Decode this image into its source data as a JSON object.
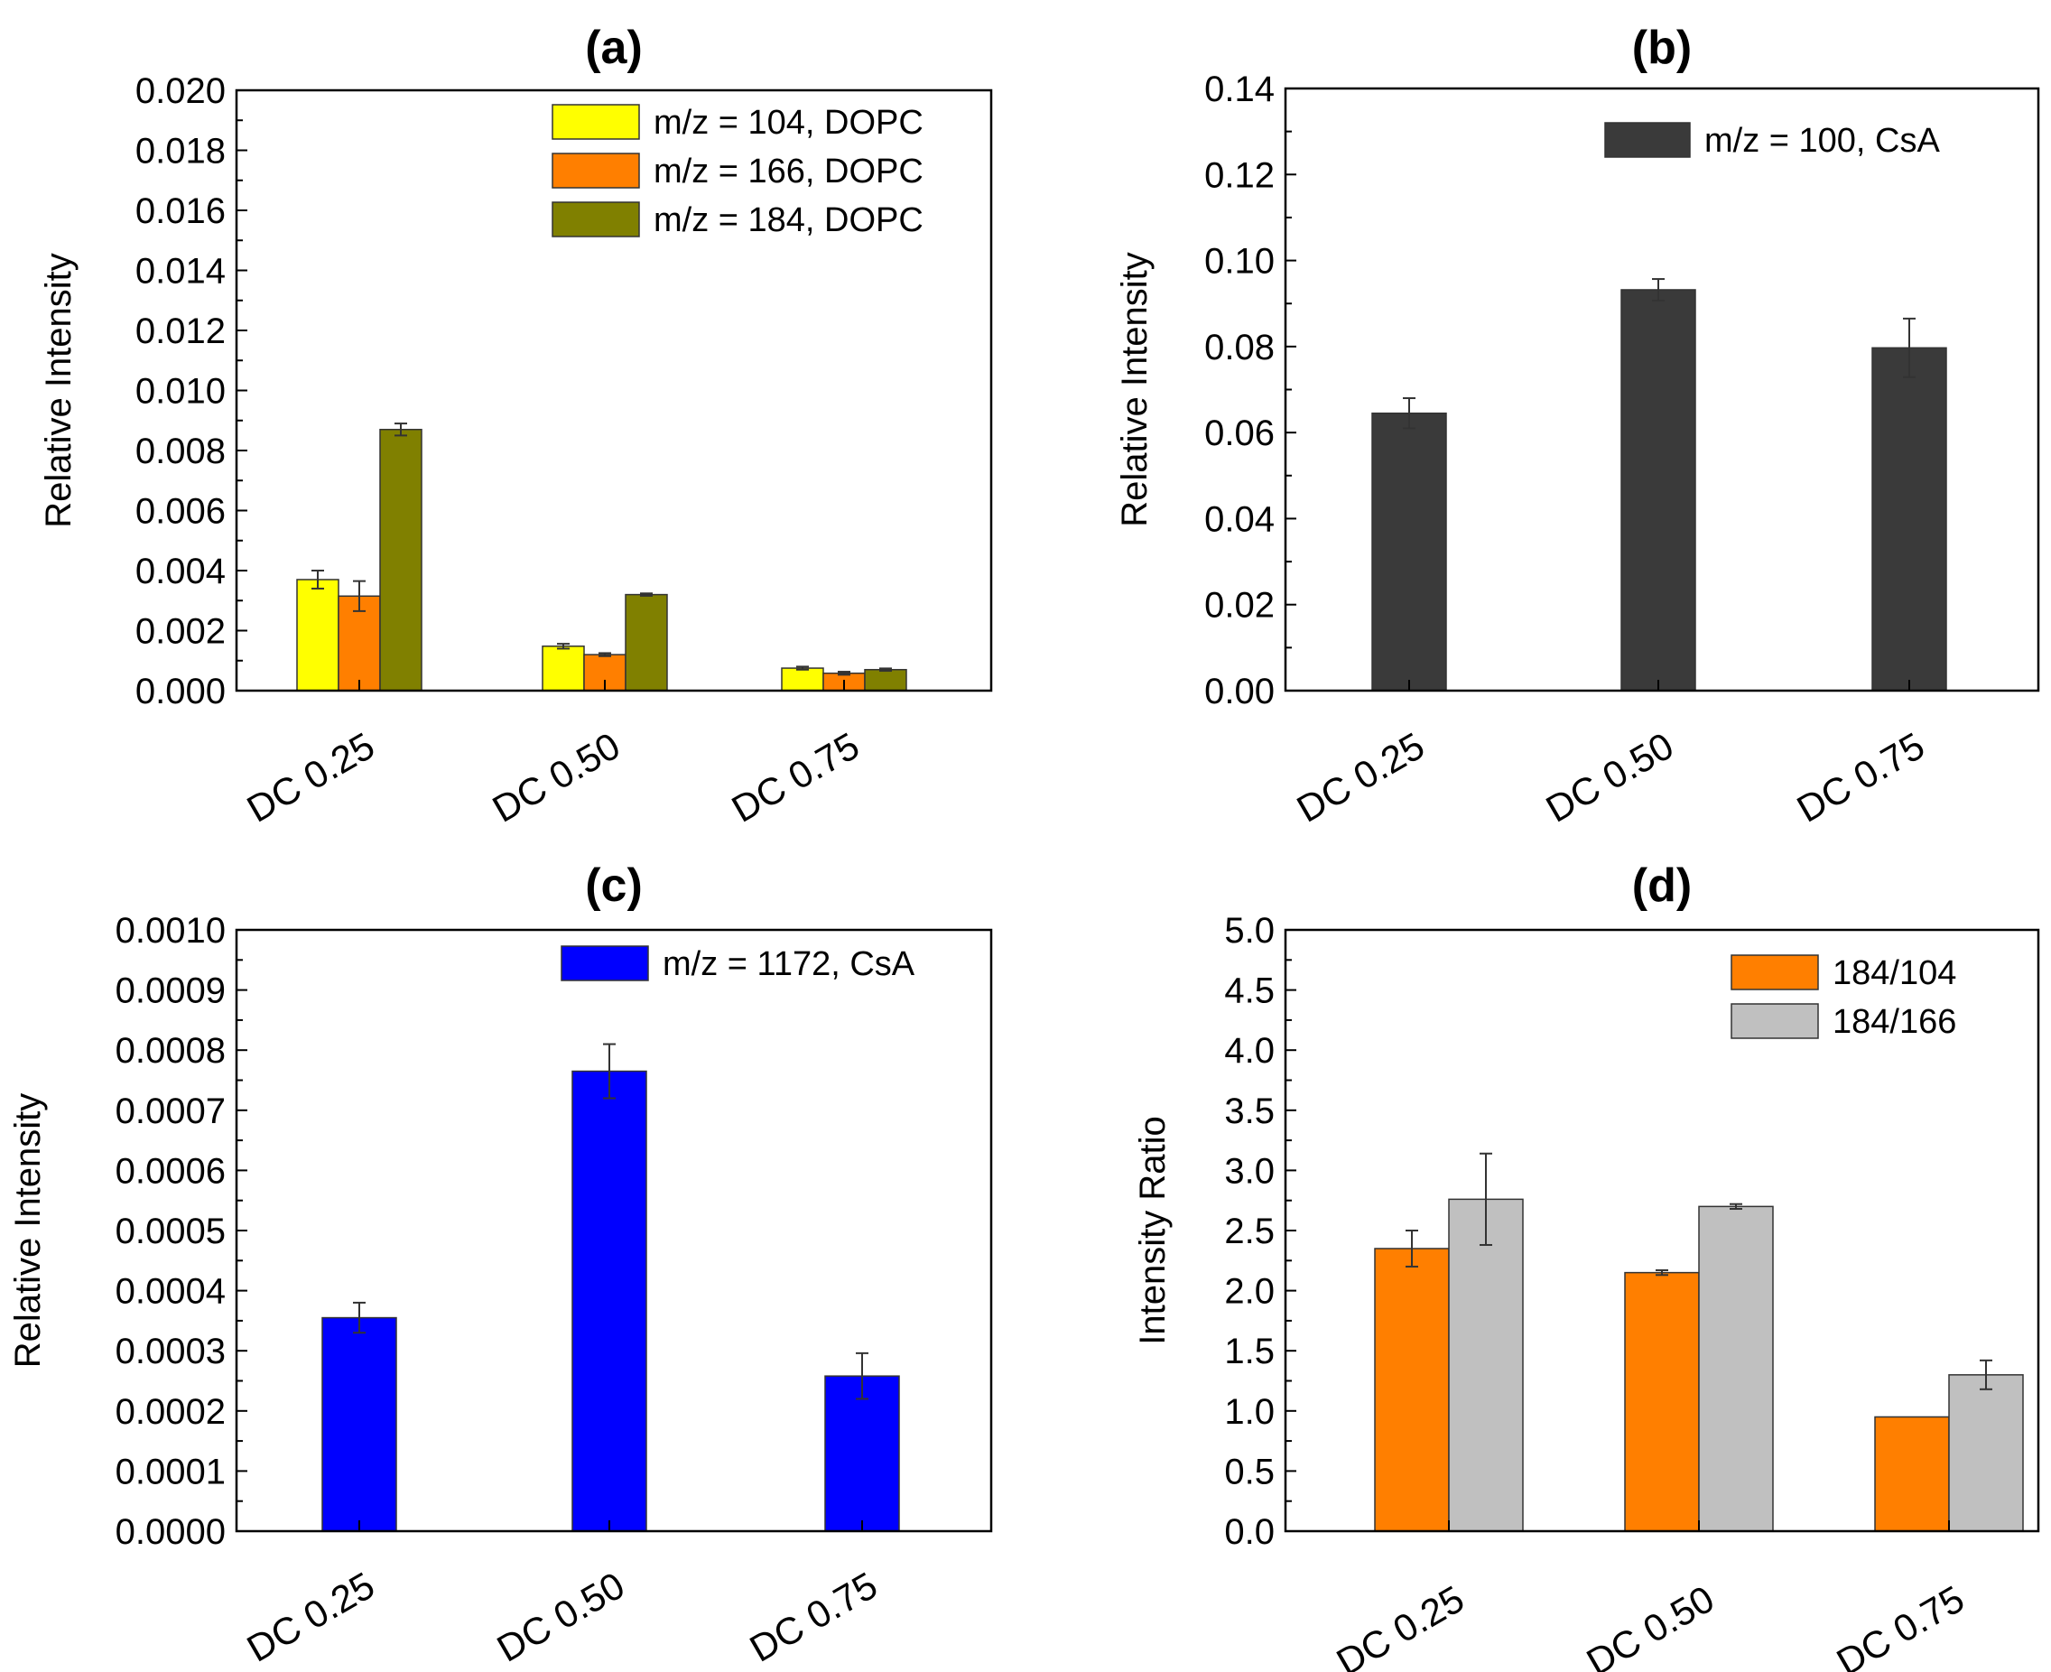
{
  "chart_data": [
    {
      "type": "bar",
      "title": "(a)",
      "xlabel": "",
      "ylabel": "Relative Intensity",
      "ylim": [
        0,
        0.02
      ],
      "yticks": [
        "0.000",
        "0.002",
        "0.004",
        "0.006",
        "0.008",
        "0.010",
        "0.012",
        "0.014",
        "0.016",
        "0.018",
        "0.020"
      ],
      "categories": [
        "DC 0.25",
        "DC 0.50",
        "DC 0.75"
      ],
      "legend_position": "top-right",
      "series": [
        {
          "name": "m/z = 104, DOPC",
          "color": "#ffff00",
          "values": [
            0.0037,
            0.00148,
            0.00075
          ],
          "errors": [
            0.0003,
            8e-05,
            5e-05
          ]
        },
        {
          "name": "m/z = 166, DOPC",
          "color": "#ff7f00",
          "values": [
            0.00315,
            0.0012,
            0.00058
          ],
          "errors": [
            0.0005,
            5e-05,
            5e-05
          ]
        },
        {
          "name": "m/z = 184, DOPC",
          "color": "#808000",
          "values": [
            0.0087,
            0.0032,
            0.0007
          ],
          "errors": [
            0.0002,
            4e-05,
            4e-05
          ]
        }
      ]
    },
    {
      "type": "bar",
      "title": "(b)",
      "xlabel": "",
      "ylabel": "Relative Intensity",
      "ylim": [
        0,
        0.14
      ],
      "yticks": [
        "0.00",
        "0.02",
        "0.04",
        "0.06",
        "0.08",
        "0.10",
        "0.12",
        "0.14"
      ],
      "categories": [
        "DC 0.25",
        "DC 0.50",
        "DC 0.75"
      ],
      "legend_position": "top-right",
      "series": [
        {
          "name": "m/z = 100, CsA",
          "color": "#3a3a3a",
          "values": [
            0.0645,
            0.0932,
            0.0797
          ],
          "errors": [
            0.0035,
            0.0025,
            0.0068
          ]
        }
      ]
    },
    {
      "type": "bar",
      "title": "(c)",
      "xlabel": "",
      "ylabel": "Relative Intensity",
      "ylim": [
        0,
        0.001
      ],
      "yticks": [
        "0.0000",
        "0.0001",
        "0.0002",
        "0.0003",
        "0.0004",
        "0.0005",
        "0.0006",
        "0.0007",
        "0.0008",
        "0.0009",
        "0.0010"
      ],
      "categories": [
        "DC 0.25",
        "DC 0.50",
        "DC 0.75"
      ],
      "legend_position": "top-right",
      "series": [
        {
          "name": "m/z = 1172, CsA",
          "color": "#0000ff",
          "values": [
            0.000355,
            0.000765,
            0.000258
          ],
          "errors": [
            2.5e-05,
            4.5e-05,
            3.8e-05
          ]
        }
      ]
    },
    {
      "type": "bar",
      "title": "(d)",
      "xlabel": "",
      "ylabel": "Intensity Ratio",
      "ylim": [
        0,
        5.0
      ],
      "yticks": [
        "0.0",
        "0.5",
        "1.0",
        "1.5",
        "2.0",
        "2.5",
        "3.0",
        "3.5",
        "4.0",
        "4.5",
        "5.0"
      ],
      "categories": [
        "DC 0.25",
        "DC 0.50",
        "DC 0.75"
      ],
      "legend_position": "top-right",
      "series": [
        {
          "name": "184/104",
          "color": "#ff7f00",
          "values": [
            2.35,
            2.15,
            0.95
          ],
          "errors": [
            0.15,
            0.02,
            0.0
          ]
        },
        {
          "name": "184/166",
          "color": "#c0c0c0",
          "values": [
            2.76,
            2.7,
            1.3
          ],
          "errors": [
            0.38,
            0.02,
            0.12
          ]
        }
      ]
    }
  ]
}
